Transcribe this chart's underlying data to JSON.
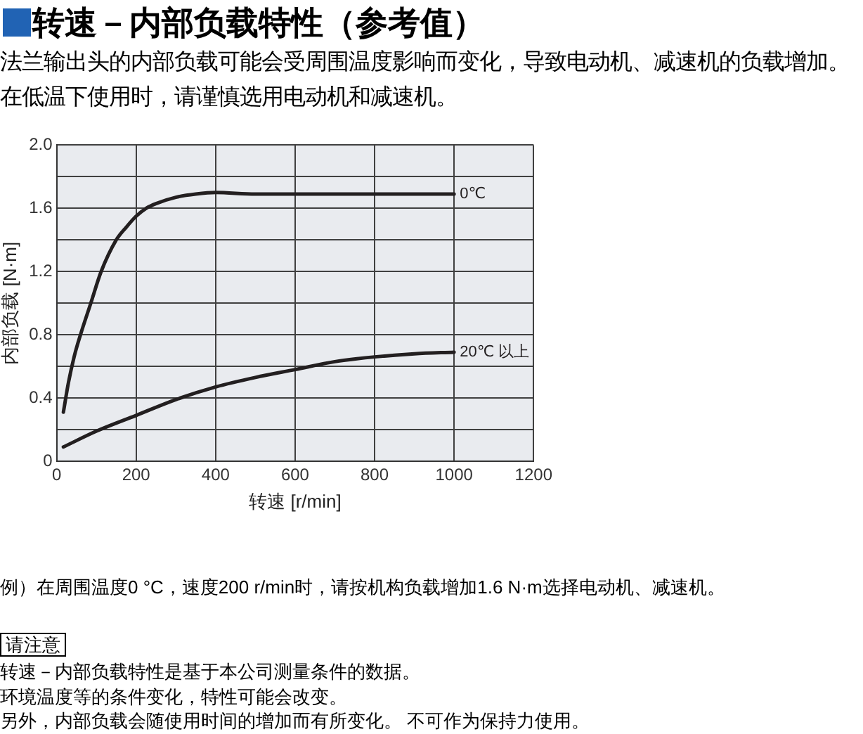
{
  "chart_data": {
    "type": "line",
    "title": "转速－内部负载特性（参考值）",
    "subtitle": "法兰输出头的内部负载可能会受周围温度影响而变化，导致电动机、减速机的负载增加。在低温下使用时，请谨慎选用电动机和减速机。",
    "xlabel": "转速 [r/min]",
    "ylabel": "内部负载 [N·m]",
    "annotations": [
      "例）在周围温度0 °C，速度200 r/min时，请按机构负载增加1.6 N·m选择电动机、减速机。",
      "请注意",
      "转速－内部负载特性是基于本公司测量条件的数据。",
      "环境温度等的条件变化，特性可能会改变。",
      "另外，内部负载会随使用时间的增加而有所变化。 不可作为保持力使用。"
    ],
    "series": [
      {
        "name": "0℃",
        "color": "#231f20",
        "x": [
          17,
          30,
          45,
          60,
          86,
          112,
          150,
          175,
          200,
          225,
          250,
          300,
          350,
          400,
          500,
          600,
          700,
          800,
          900,
          1000
        ],
        "values": [
          0.31,
          0.5,
          0.67,
          0.8,
          1.0,
          1.2,
          1.4,
          1.48,
          1.55,
          1.6,
          1.63,
          1.67,
          1.69,
          1.7,
          1.69,
          1.69,
          1.69,
          1.69,
          1.69,
          1.69
        ]
      },
      {
        "name": "20℃ 以上",
        "color": "#231f20",
        "x": [
          17,
          100,
          200,
          300,
          400,
          500,
          600,
          700,
          800,
          900,
          1000
        ],
        "values": [
          0.09,
          0.19,
          0.29,
          0.39,
          0.47,
          0.53,
          0.58,
          0.63,
          0.66,
          0.68,
          0.69
        ]
      }
    ],
    "xlim": [
      0,
      1200
    ],
    "ylim": [
      0,
      2
    ],
    "xticks": [
      0,
      200,
      400,
      600,
      800,
      1000,
      1200
    ],
    "yticks": [
      0,
      {
        "value": 0.2,
        "label": null
      },
      0.4,
      {
        "value": 0.6,
        "label": null
      },
      0.8,
      {
        "value": 1.0,
        "label": null
      },
      1.2,
      {
        "value": 1.4,
        "label": null
      },
      1.6,
      {
        "value": 1.8,
        "label": null
      },
      {
        "value": 2,
        "label": "2.0"
      }
    ],
    "grid": true,
    "legend": false,
    "marker": "none"
  }
}
